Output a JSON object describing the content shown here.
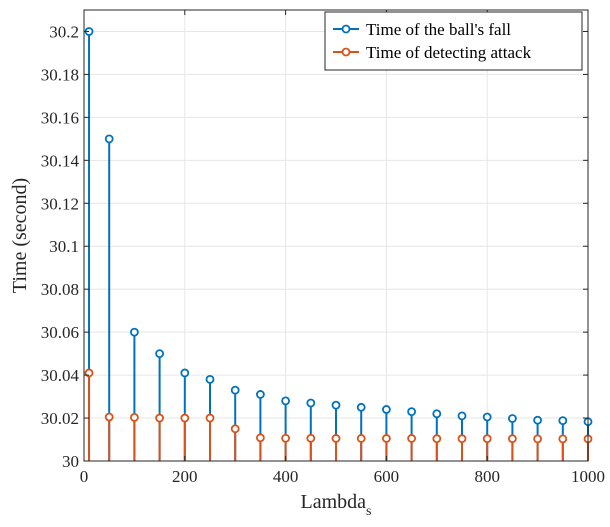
{
  "chart_data": {
    "type": "stem",
    "xlabel": "Lambda",
    "xlabel_subscript": "s",
    "ylabel": "Time (second)",
    "xlim": [
      0,
      1000
    ],
    "ylim": [
      30,
      30.21
    ],
    "xticks": [
      0,
      200,
      400,
      600,
      800,
      1000
    ],
    "yticks": [
      30,
      30.02,
      30.04,
      30.06,
      30.08,
      30.1,
      30.12,
      30.14,
      30.16,
      30.18,
      30.2
    ],
    "ytick_labels": [
      "30",
      "30.02",
      "30.04",
      "30.06",
      "30.08",
      "30.1",
      "30.12",
      "30.14",
      "30.16",
      "30.18",
      "30.2"
    ],
    "grid": true,
    "legend_position": "top-right",
    "x": [
      10,
      50,
      100,
      150,
      200,
      250,
      300,
      350,
      400,
      450,
      500,
      550,
      600,
      650,
      700,
      750,
      800,
      850,
      900,
      950,
      1000
    ],
    "series": [
      {
        "name": "Time of the ball's fall",
        "color": "#0072BD",
        "values": [
          30.2,
          30.15,
          30.06,
          30.05,
          30.041,
          30.038,
          30.033,
          30.031,
          30.028,
          30.027,
          30.026,
          30.025,
          30.024,
          30.023,
          30.022,
          30.021,
          30.0205,
          30.0198,
          30.019,
          30.0188,
          30.0183
        ]
      },
      {
        "name": "Time of detecting attack",
        "color": "#D95319",
        "values": [
          30.041,
          30.0205,
          30.0203,
          30.02,
          30.02,
          30.02,
          30.015,
          30.0108,
          30.0106,
          30.0106,
          30.0105,
          30.0105,
          30.0105,
          30.0105,
          30.0104,
          30.0104,
          30.0104,
          30.0104,
          30.0103,
          30.0103,
          30.0103
        ]
      }
    ]
  }
}
